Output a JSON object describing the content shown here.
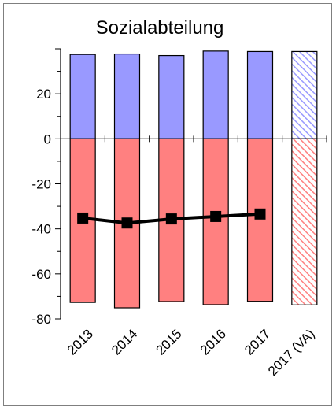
{
  "chart_data": {
    "type": "bar",
    "title": "Sozialabteilung",
    "xlabel": "",
    "ylabel": "",
    "categories": [
      "2013",
      "2014",
      "2015",
      "2016",
      "2017",
      "2017 (VA)"
    ],
    "ylim": [
      -80,
      40
    ],
    "yticks": [
      20,
      0,
      -20,
      -40,
      -60,
      -80
    ],
    "grid": false,
    "legend": "none",
    "series": [
      {
        "values": [
          37.5,
          37.7,
          37.0,
          39.0,
          38.8,
          38.8
        ],
        "color": "#9999ff"
      },
      {
        "values": [
          -72.7,
          -75.1,
          -72.3,
          -73.7,
          -72.2,
          -73.8
        ],
        "color": "#ff8080"
      }
    ],
    "projected_categories": [
      "2017 (VA)"
    ],
    "line": {
      "values": [
        -35.2,
        -37.4,
        -35.6,
        -34.5,
        -33.4,
        null
      ],
      "color": "#000000",
      "marker": "square"
    }
  }
}
